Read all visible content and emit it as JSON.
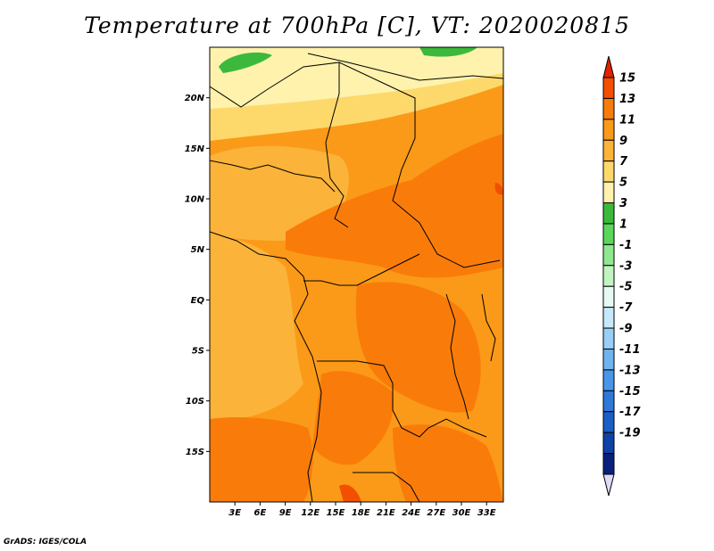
{
  "title": "Temperature at 700hPa [C], VT: 2020020815",
  "credit": "GrADS: IGES/COLA",
  "map": {
    "lat_ticks": [
      "20N",
      "15N",
      "10N",
      "5N",
      "EQ",
      "5S",
      "10S",
      "15S"
    ],
    "lon_ticks": [
      "3E",
      "6E",
      "9E",
      "12E",
      "15E",
      "18E",
      "21E",
      "24E",
      "27E",
      "30E",
      "33E"
    ],
    "lat_values": [
      20,
      15,
      10,
      5,
      0,
      -5,
      -10,
      -15
    ],
    "lon_values": [
      3,
      6,
      9,
      12,
      15,
      18,
      21,
      24,
      27,
      30,
      33
    ],
    "lon_range": [
      0,
      35
    ],
    "lat_range": [
      -20,
      25
    ]
  },
  "colorbar": {
    "labels": [
      "15",
      "13",
      "11",
      "9",
      "7",
      "5",
      "3",
      "1",
      "-1",
      "-3",
      "-5",
      "-7",
      "-9",
      "-11",
      "-13",
      "-15",
      "-17",
      "-19"
    ],
    "colors": [
      "#e12200",
      "#f24f00",
      "#f97c0a",
      "#fb9a18",
      "#fbb33a",
      "#fdd96c",
      "#fef2ad",
      "#3cb93c",
      "#5bd65b",
      "#8fe88f",
      "#c2f4c2",
      "#e6f9f5",
      "#c6e8fa",
      "#99cef6",
      "#6fb3ef",
      "#4896ea",
      "#2d78d9",
      "#1b5ec6",
      "#0f42a8",
      "#091f7c",
      "#dcdcf6"
    ]
  }
}
